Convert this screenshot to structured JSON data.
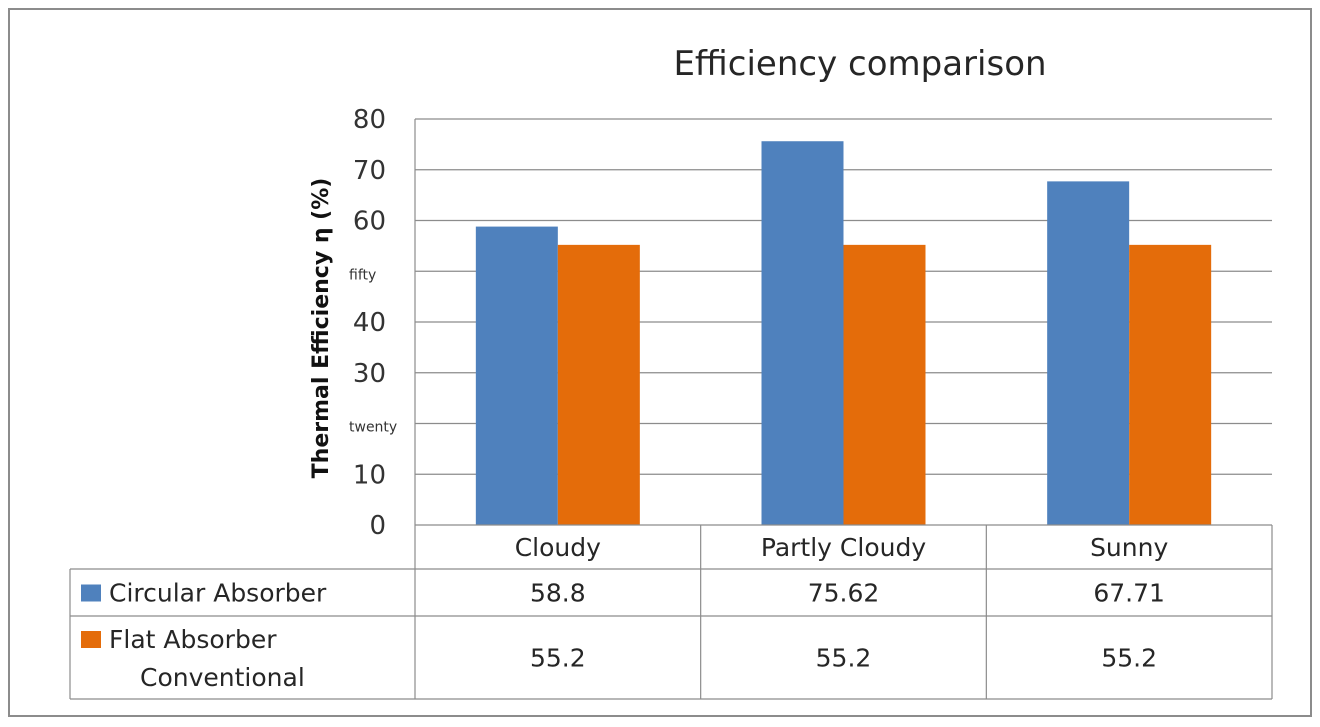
{
  "chart_data": {
    "type": "bar",
    "title": "Efficiency comparison",
    "xlabel": "",
    "ylabel": "Thermal Efficiency η (%)",
    "ylim": [
      0,
      80
    ],
    "ytick_labels": [
      "0",
      "10",
      "twenty",
      "30",
      "40",
      "fifty",
      "60",
      "70",
      "80"
    ],
    "categories": [
      "Cloudy",
      "Partly Cloudy",
      "Sunny"
    ],
    "series": [
      {
        "name": "Circular Absorber",
        "values": [
          58.8,
          75.62,
          67.71
        ],
        "color": "#4f81bd",
        "table_values": [
          "58.8",
          "75.62",
          "67.71"
        ]
      },
      {
        "name_lines": [
          "Flat Absorber",
          "Conventional"
        ],
        "values": [
          55.2,
          55.2,
          55.2
        ],
        "color": "#e46c0a",
        "table_values": [
          "55.2",
          "55.2",
          "55.2"
        ]
      }
    ],
    "grid": true,
    "legend": "data-table"
  }
}
